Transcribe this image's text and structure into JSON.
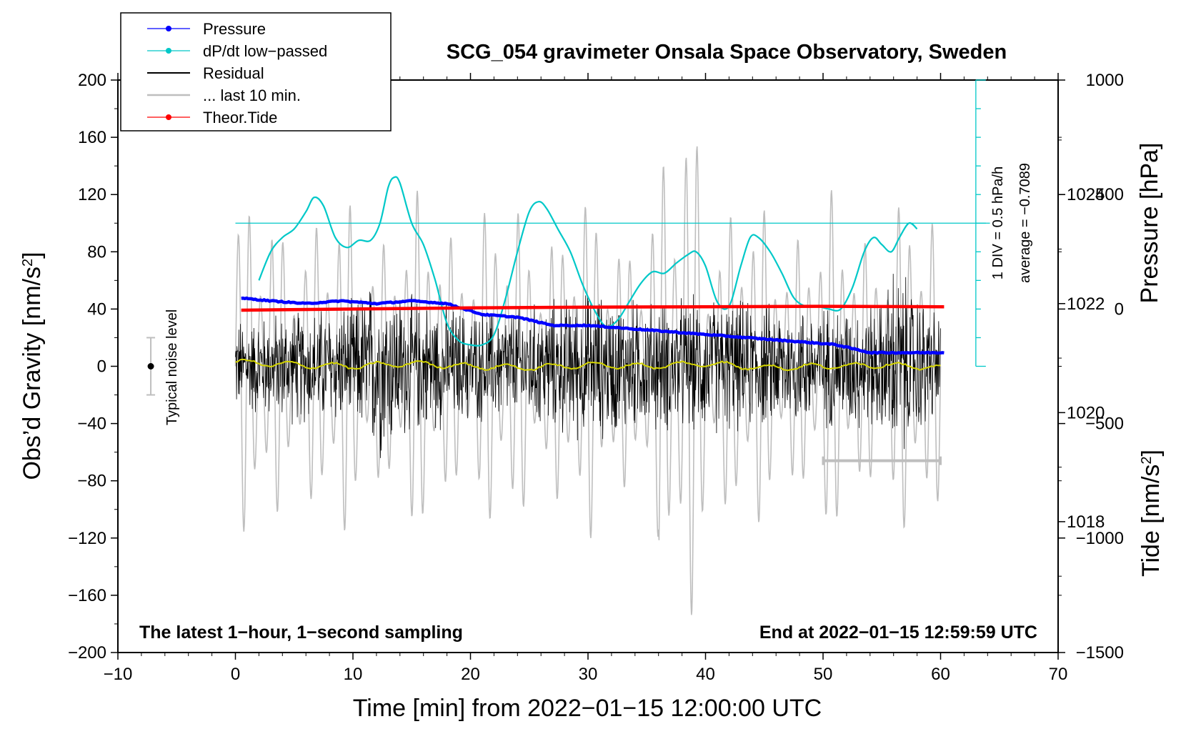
{
  "chart_data": {
    "type": "line",
    "title": "SCG_054 gravimeter Onsala Space Observatory, Sweden",
    "xlabel": "Time [min] from 2022−01−15 12:00:00 UTC",
    "ylabel": "Obs’d Gravity [nm/s²]",
    "ylabel_main": "Obs’d Gravity [nm/s",
    "ylabel_sup": "2",
    "ylabel_end": "]",
    "y2label": "Pressure [hPa]",
    "y3label_main": "Tide [nm/s",
    "y3label_sup": "2",
    "y3label_end": "]",
    "xlim": [
      -10,
      70
    ],
    "ylim": [
      -200,
      200
    ],
    "pressure_ylim": [
      1015.6,
      1026.1
    ],
    "tide_ylim": [
      -1500,
      1000
    ],
    "x_ticks": [
      "−10",
      "0",
      "10",
      "20",
      "30",
      "40",
      "50",
      "60",
      "70"
    ],
    "x_tick_values": [
      -10,
      0,
      10,
      20,
      30,
      40,
      50,
      60,
      70
    ],
    "y_ticks": [
      "200",
      "160",
      "120",
      "80",
      "40",
      "0",
      "−40",
      "−80",
      "−120",
      "−160",
      "−200"
    ],
    "y_tick_values": [
      200,
      160,
      120,
      80,
      40,
      0,
      -40,
      -80,
      -120,
      -160,
      -200
    ],
    "pressure_ticks": [
      "1024",
      "1022",
      "1020",
      "1018"
    ],
    "pressure_tick_values": [
      1024,
      1022,
      1020,
      1018
    ],
    "tide_ticks": [
      "1000",
      "500",
      "0",
      "−500",
      "−1000",
      "−1500"
    ],
    "tide_tick_values": [
      1000,
      500,
      0,
      -500,
      -1000,
      -1500
    ],
    "legend": [
      {
        "label": "Pressure",
        "color": "#0000ff",
        "marker": true
      },
      {
        "label": "dP/dt low−passed",
        "color": "#00c8c8",
        "marker": true
      },
      {
        "label": "Residual",
        "color": "#000000",
        "marker": false
      },
      {
        "label": "... last 10 min.",
        "color": "#bebebe",
        "marker": false
      },
      {
        "label": "Theor.Tide",
        "color": "#ff0000",
        "marker": true
      }
    ],
    "noise_label": "Typical noise level",
    "noise_level_range": [
      -20,
      20
    ],
    "dpdt_scale_label": "1 DIV = 0.5 hPa/h",
    "dpdt_average_label": "average = −0.7089",
    "dpdt_reference_level": 100,
    "dpdt_axis_x": 63,
    "bottom_left_note": "The latest 1−hour, 1−second sampling",
    "bottom_right_note": "End at 2022−01−15 12:59:59 UTC",
    "last10_bar_range_min": [
      50,
      60
    ],
    "last10_bar_y": -66,
    "series": [
      {
        "name": "Pressure",
        "color": "#0000ff",
        "axis": "pressure",
        "x": [
          0.5,
          3,
          6,
          9,
          12,
          15,
          18,
          21,
          24,
          27,
          30,
          33,
          36,
          39,
          42,
          45,
          48,
          51,
          54,
          57,
          60.3
        ],
        "values": [
          1022.1,
          1022.05,
          1022.0,
          1022.05,
          1022.0,
          1022.05,
          1022.0,
          1021.8,
          1021.75,
          1021.6,
          1021.6,
          1021.55,
          1021.5,
          1021.45,
          1021.4,
          1021.35,
          1021.3,
          1021.25,
          1021.1,
          1021.1,
          1021.1
        ]
      },
      {
        "name": "dP/dt low-passed",
        "color": "#00c8c8",
        "axis": "gravity",
        "x": [
          2,
          3,
          4,
          5,
          6,
          6.7,
          7.5,
          8.5,
          9.5,
          10.5,
          11.5,
          12.3,
          13,
          13.5,
          14,
          15,
          16,
          17,
          18,
          19,
          20,
          21,
          22,
          23,
          24,
          25,
          25.8,
          26.5,
          27.5,
          28.5,
          29.5,
          30.5,
          31.5,
          32.5,
          33.5,
          34.5,
          35.5,
          36.5,
          37.5,
          38.5,
          39.2,
          40,
          41,
          42,
          43,
          43.8,
          44.5,
          45.5,
          46.5,
          47.5,
          48.5,
          49.5,
          50.5,
          51.5,
          52.5,
          53.5,
          54.3,
          55,
          55.8,
          56.5,
          57.3,
          58
        ],
        "values": [
          60,
          80,
          90,
          96,
          108,
          118,
          112,
          90,
          83,
          88,
          88,
          100,
          125,
          132,
          128,
          100,
          85,
          60,
          30,
          18,
          15,
          15,
          22,
          48,
          80,
          108,
          115,
          110,
          95,
          80,
          58,
          40,
          28,
          32,
          45,
          58,
          66,
          65,
          72,
          78,
          80,
          70,
          45,
          42,
          70,
          90,
          90,
          80,
          65,
          48,
          42,
          42,
          40,
          40,
          55,
          80,
          90,
          85,
          80,
          90,
          100,
          96
        ]
      },
      {
        "name": "Residual",
        "color": "#000000",
        "axis": "gravity",
        "x": [
          0,
          5,
          10,
          12,
          15,
          20,
          25,
          30,
          35,
          40,
          45,
          50,
          55,
          56,
          60
        ],
        "envelope": [
          38,
          45,
          50,
          75,
          55,
          45,
          48,
          60,
          52,
          55,
          50,
          48,
          52,
          82,
          40
        ]
      },
      {
        "name": "Residual smoothed",
        "color": "#d4d400",
        "axis": "gravity",
        "x": [
          0,
          5,
          10,
          15,
          20,
          25,
          30,
          35,
          40,
          45,
          50,
          55,
          60
        ],
        "values": [
          3,
          1,
          0,
          2,
          0,
          -1,
          1,
          0,
          2,
          -1,
          0,
          1,
          -1
        ]
      },
      {
        "name": "... last 10 min.",
        "color": "#bebebe",
        "axis": "tide_overlay",
        "time_range": [
          0,
          60
        ]
      },
      {
        "name": "Theor.Tide",
        "color": "#ff0000",
        "axis": "tide",
        "x": [
          0.5,
          10,
          20,
          30,
          40,
          50,
          60.3
        ],
        "values": [
          -5,
          0,
          5,
          8,
          10,
          12,
          10
        ]
      }
    ]
  }
}
